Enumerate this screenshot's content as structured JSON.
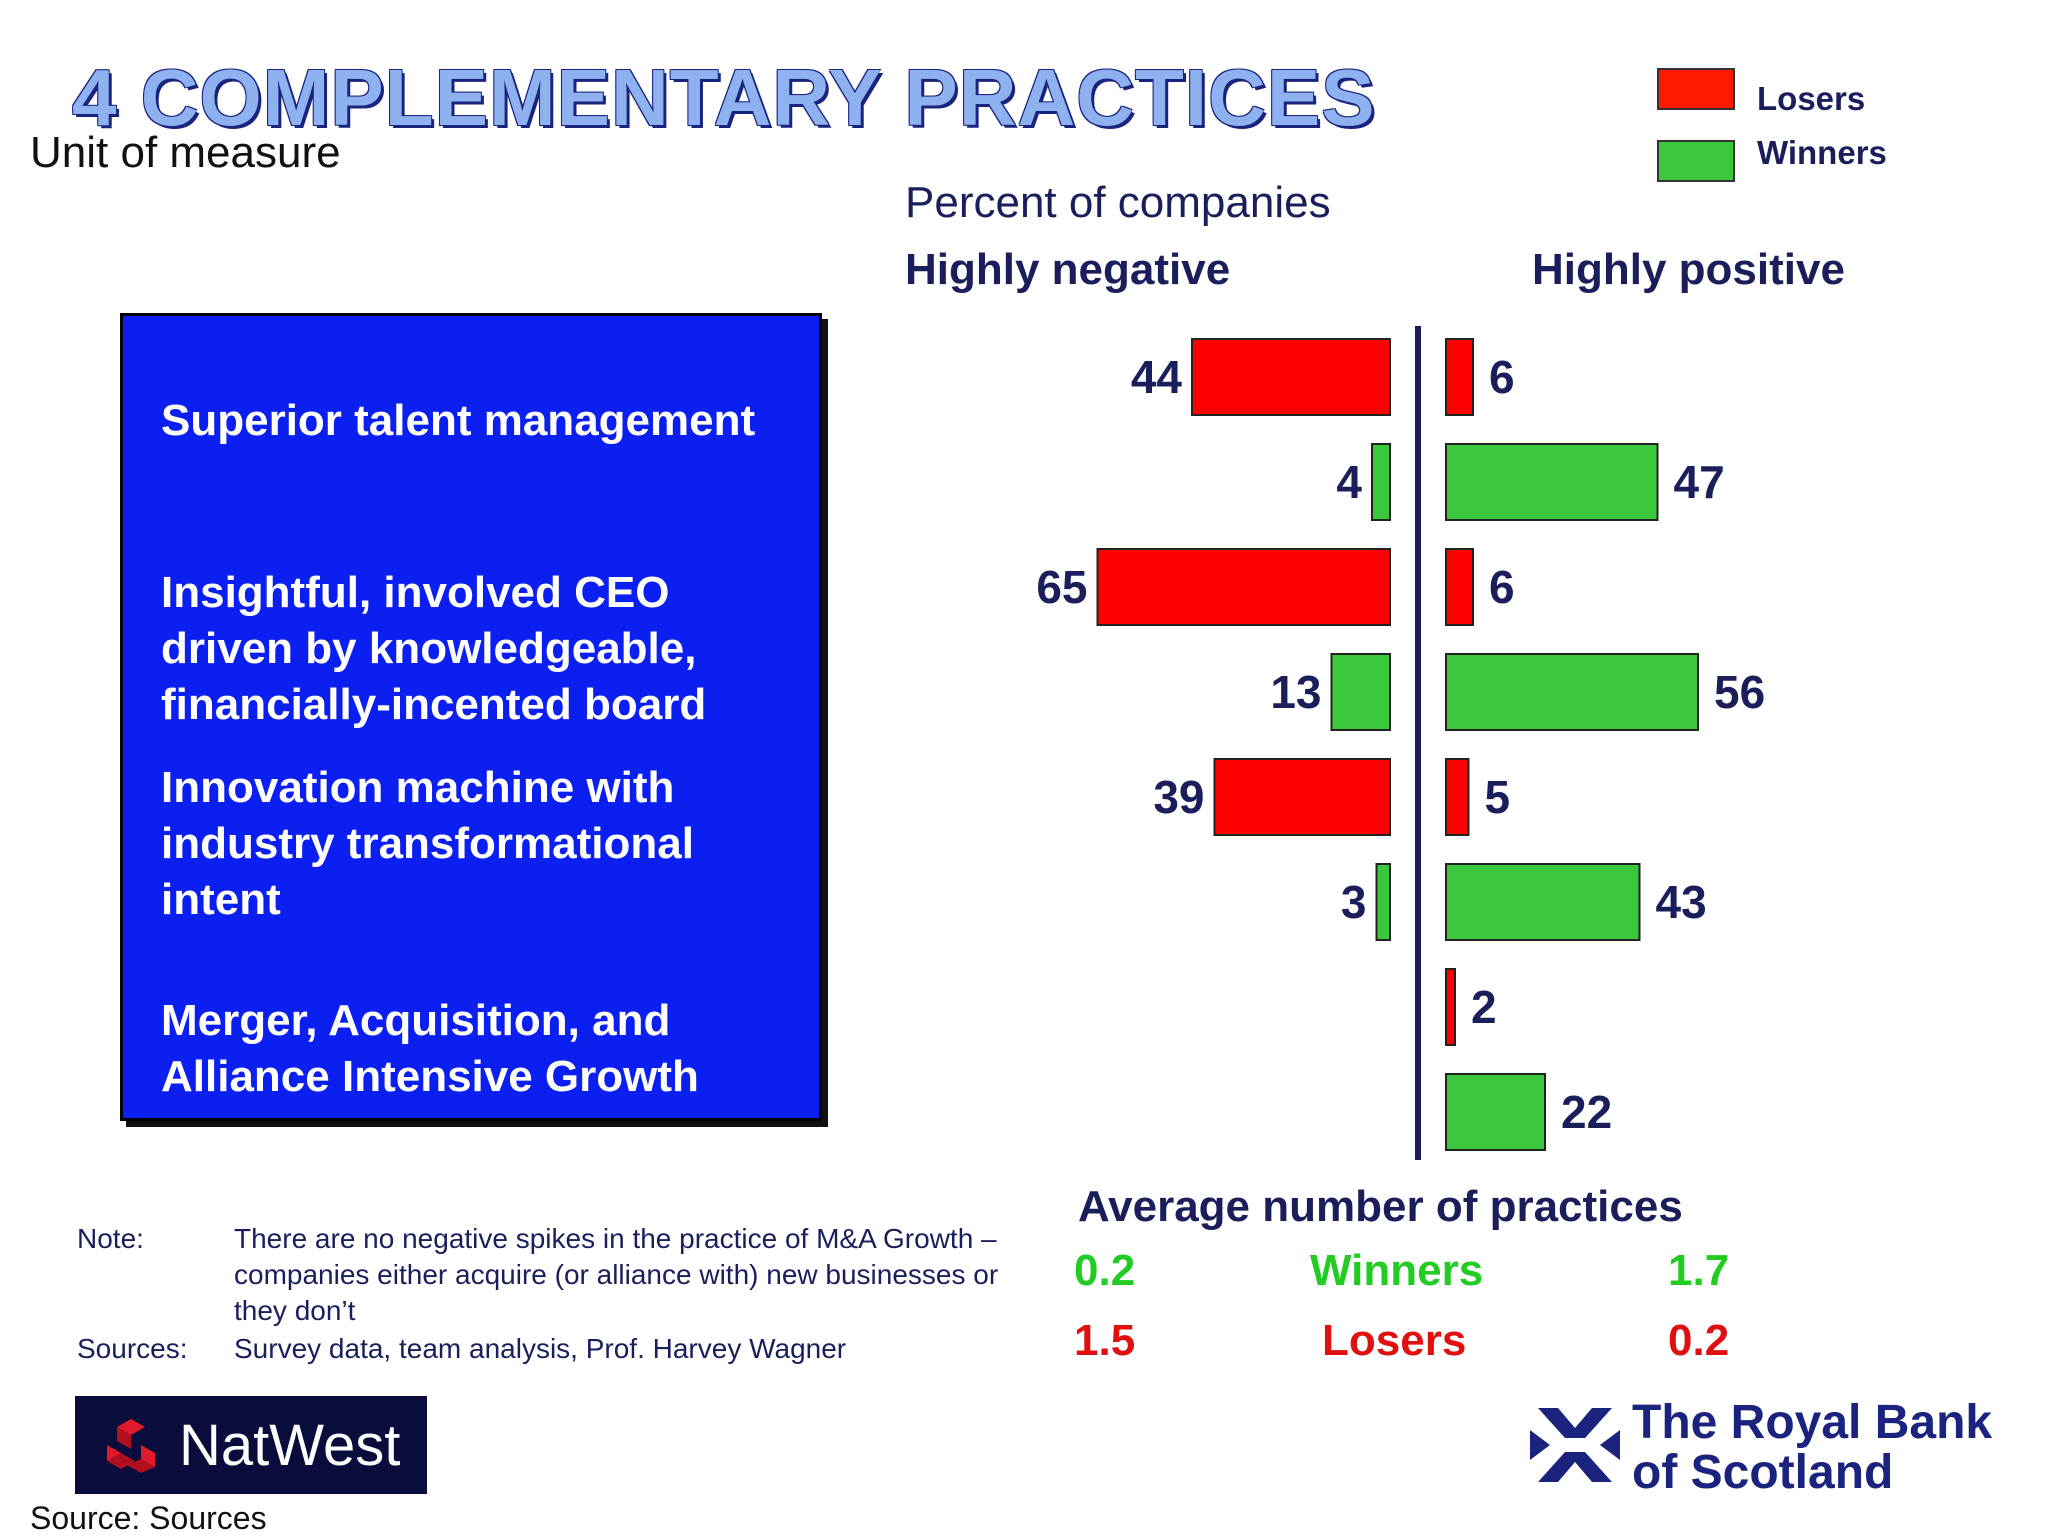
{
  "title": "4 COMPLEMENTARY PRACTICES",
  "unit_of_measure": "Unit of measure",
  "legend": {
    "losers_label": "Losers",
    "winners_label": "Winners",
    "losers_color": "#ff0000",
    "winners_color": "#3cc83c"
  },
  "subtitle": "Percent of companies",
  "header_negative": "Highly negative",
  "header_positive": "Highly positive",
  "practices": [
    "Superior talent management",
    "Insightful, involved CEO driven by knowledgeable, financially-incented board",
    "Innovation machine with industry transformational intent",
    "Merger, Acquisition, and Alliance Intensive Growth"
  ],
  "chart_data": {
    "type": "bar",
    "orientation": "horizontal-diverging",
    "categories": [
      "Superior talent management",
      "Insightful, involved CEO driven by knowledgeable, financially-incented board",
      "Innovation machine with industry transformational intent",
      "Merger, Acquisition, and Alliance Intensive Growth"
    ],
    "series": [
      {
        "name": "Losers",
        "group": "Highly negative",
        "values": [
          44,
          65,
          39,
          null
        ]
      },
      {
        "name": "Winners",
        "group": "Highly negative",
        "values": [
          4,
          13,
          3,
          null
        ]
      },
      {
        "name": "Losers",
        "group": "Highly positive",
        "values": [
          6,
          6,
          5,
          2
        ]
      },
      {
        "name": "Winners",
        "group": "Highly positive",
        "values": [
          47,
          56,
          43,
          22
        ]
      }
    ],
    "xlabel": "Percent of companies",
    "legend_position": "top-right",
    "grid": false
  },
  "average": {
    "title": "Average number of practices",
    "rows": [
      {
        "label": "Winners",
        "negative": "0.2",
        "positive": "1.7",
        "color": "#22cc22"
      },
      {
        "label": "Losers",
        "negative": "1.5",
        "positive": "0.2",
        "color": "#e01010"
      }
    ]
  },
  "note": {
    "label": "Note:",
    "text": "There are no negative spikes in the practice of M&A Growth – companies either acquire (or alliance with) new businesses or they don’t"
  },
  "sources": {
    "label": "Sources:",
    "text": "Survey data, team analysis, Prof. Harvey Wagner"
  },
  "logos": {
    "natwest": "NatWest",
    "rbs_line1": "The Royal Bank",
    "rbs_line2": "of Scotland"
  },
  "footer_source": "Source: Sources"
}
